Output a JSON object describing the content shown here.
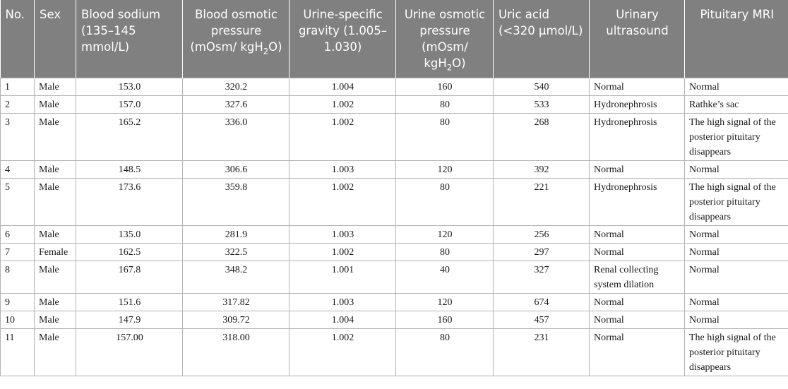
{
  "table": {
    "headers": {
      "no": "No.",
      "sex": "Sex",
      "sodium": "Blood sodium (135–145 mmol/L)",
      "blood_osm_a": "Blood osmotic pressure (mOsm/ kgH",
      "blood_osm_sub": "2",
      "blood_osm_b": "O)",
      "usg": "Urine-specific gravity (1.005–1.030)",
      "urine_osm_a": "Urine osmotic pressure (mOsm/ kgH",
      "urine_osm_sub": "2",
      "urine_osm_b": "O)",
      "uric": "Uric acid (<320 μmol/L)",
      "ultrasound": "Urinary ultrasound",
      "mri": "Pituitary MRI"
    },
    "rows": [
      {
        "no": "1",
        "sex": "Male",
        "sodium": "153.0",
        "blood_osm": "320.2",
        "usg": "1.004",
        "urine_osm": "160",
        "uric": "540",
        "ultrasound": "Normal",
        "mri": "Normal"
      },
      {
        "no": "2",
        "sex": "Male",
        "sodium": "157.0",
        "blood_osm": "327.6",
        "usg": "1.002",
        "urine_osm": "80",
        "uric": "533",
        "ultrasound": "Hydronephrosis",
        "mri": "Rathke’s sac"
      },
      {
        "no": "3",
        "sex": "Male",
        "sodium": "165.2",
        "blood_osm": "336.0",
        "usg": "1.002",
        "urine_osm": "80",
        "uric": "268",
        "ultrasound": "Hydronephrosis",
        "mri": "The high signal of the posterior pituitary disappears"
      },
      {
        "no": "4",
        "sex": "Male",
        "sodium": "148.5",
        "blood_osm": "306.6",
        "usg": "1.003",
        "urine_osm": "120",
        "uric": "392",
        "ultrasound": "Normal",
        "mri": "Normal"
      },
      {
        "no": "5",
        "sex": "Male",
        "sodium": "173.6",
        "blood_osm": "359.8",
        "usg": "1.002",
        "urine_osm": "80",
        "uric": "221",
        "ultrasound": "Hydronephrosis",
        "mri": "The high signal of the posterior pituitary disappears"
      },
      {
        "no": "6",
        "sex": "Male",
        "sodium": "135.0",
        "blood_osm": "281.9",
        "usg": "1.003",
        "urine_osm": "120",
        "uric": "256",
        "ultrasound": "Normal",
        "mri": "Normal"
      },
      {
        "no": "7",
        "sex": "Female",
        "sodium": "162.5",
        "blood_osm": "322.5",
        "usg": "1.002",
        "urine_osm": "80",
        "uric": "297",
        "ultrasound": "Normal",
        "mri": "Normal"
      },
      {
        "no": "8",
        "sex": "Male",
        "sodium": "167.8",
        "blood_osm": "348.2",
        "usg": "1.001",
        "urine_osm": "40",
        "uric": "327",
        "ultrasound": "Renal collecting system dilation",
        "mri": "Normal"
      },
      {
        "no": "9",
        "sex": "Male",
        "sodium": "151.6",
        "blood_osm": "317.82",
        "usg": "1.003",
        "urine_osm": "120",
        "uric": "674",
        "ultrasound": "Normal",
        "mri": "Normal"
      },
      {
        "no": "10",
        "sex": "Male",
        "sodium": "147.9",
        "blood_osm": "309.72",
        "usg": "1.004",
        "urine_osm": "160",
        "uric": "457",
        "ultrasound": "Normal",
        "mri": "Normal"
      },
      {
        "no": "11",
        "sex": "Male",
        "sodium": "157.00",
        "blood_osm": "318.00",
        "usg": "1.002",
        "urine_osm": "80",
        "uric": "231",
        "ultrasound": "Normal",
        "mri": "The high signal of the posterior pituitary disappears"
      }
    ]
  }
}
